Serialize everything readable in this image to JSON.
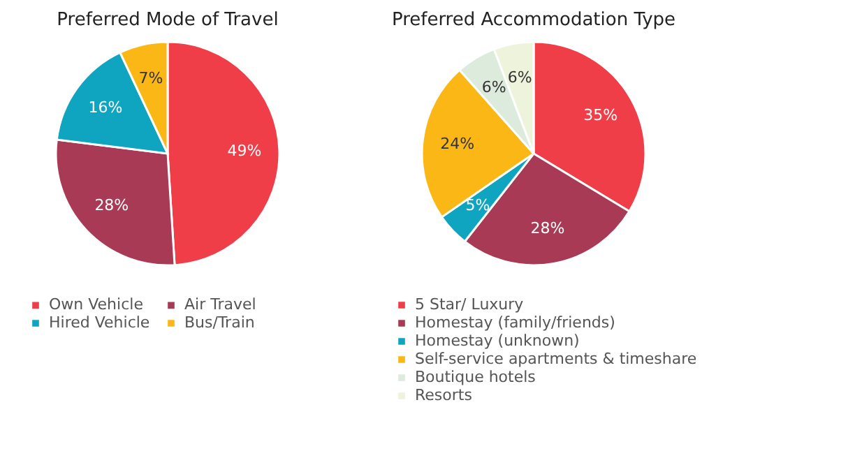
{
  "chart_data": [
    {
      "type": "pie",
      "title": "Preferred Mode of Travel",
      "categories": [
        "Own Vehicle",
        "Air Travel",
        "Hired Vehicle",
        "Bus/Train"
      ],
      "values": [
        49,
        28,
        16,
        7
      ],
      "colors": [
        "#ef3e48",
        "#a83a55",
        "#0fa5c0",
        "#fbb716"
      ],
      "value_labels": [
        "49%",
        "28%",
        "16%",
        "7%"
      ],
      "legend": "bottom"
    },
    {
      "type": "pie",
      "title": "Preferred Accommodation Type",
      "categories": [
        "5 Star/ Luxury",
        "Homestay (family/friends)",
        "Homestay (unknown)",
        "Self-service apartments & timeshare",
        "Boutique hotels",
        "Resorts"
      ],
      "values": [
        35,
        28,
        5,
        24,
        6,
        6
      ],
      "colors": [
        "#ef3e48",
        "#a83a55",
        "#0fa5c0",
        "#fbb716",
        "#dcebdc",
        "#eef3dc"
      ],
      "value_labels": [
        "35%",
        "28%",
        "5%",
        "24%",
        "6%",
        "6%"
      ],
      "legend": "bottom"
    }
  ]
}
